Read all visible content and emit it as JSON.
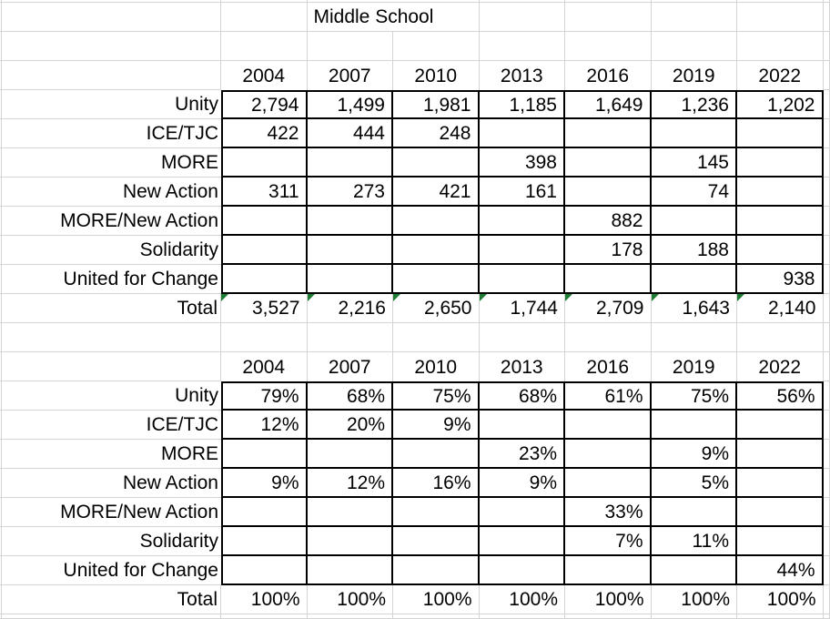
{
  "sheet_title": "Middle School",
  "years": [
    "2004",
    "2007",
    "2010",
    "2013",
    "2016",
    "2019",
    "2022"
  ],
  "counts_table": {
    "rows": [
      {
        "label": "Unity",
        "values": [
          "2,794",
          "1,499",
          "1,981",
          "1,185",
          "1,649",
          "1,236",
          "1,202"
        ]
      },
      {
        "label": "ICE/TJC",
        "values": [
          "422",
          "444",
          "248",
          "",
          "",
          "",
          ""
        ]
      },
      {
        "label": "MORE",
        "values": [
          "",
          "",
          "",
          "398",
          "",
          "145",
          ""
        ]
      },
      {
        "label": "New Action",
        "values": [
          "311",
          "273",
          "421",
          "161",
          "",
          "74",
          ""
        ]
      },
      {
        "label": "MORE/New Action",
        "values": [
          "",
          "",
          "",
          "",
          "882",
          "",
          ""
        ]
      },
      {
        "label": "Solidarity",
        "values": [
          "",
          "",
          "",
          "",
          "178",
          "188",
          ""
        ]
      },
      {
        "label": "United for Change",
        "values": [
          "",
          "",
          "",
          "",
          "",
          "",
          "938"
        ]
      }
    ],
    "total": {
      "label": "Total",
      "values": [
        "3,527",
        "2,216",
        "2,650",
        "1,744",
        "2,709",
        "1,643",
        "2,140"
      ],
      "error_indicators": true
    }
  },
  "percent_table": {
    "rows": [
      {
        "label": "Unity",
        "values": [
          "79%",
          "68%",
          "75%",
          "68%",
          "61%",
          "75%",
          "56%"
        ]
      },
      {
        "label": "ICE/TJC",
        "values": [
          "12%",
          "20%",
          "9%",
          "",
          "",
          "",
          ""
        ]
      },
      {
        "label": "MORE",
        "values": [
          "",
          "",
          "",
          "23%",
          "",
          "9%",
          ""
        ]
      },
      {
        "label": "New Action",
        "values": [
          "9%",
          "12%",
          "16%",
          "9%",
          "",
          "5%",
          ""
        ]
      },
      {
        "label": "MORE/New Action",
        "values": [
          "",
          "",
          "",
          "",
          "33%",
          "",
          ""
        ]
      },
      {
        "label": "Solidarity",
        "values": [
          "",
          "",
          "",
          "",
          "7%",
          "11%",
          ""
        ]
      },
      {
        "label": "United for Change",
        "values": [
          "",
          "",
          "",
          "",
          "",
          "",
          "44%"
        ]
      }
    ],
    "total": {
      "label": "Total",
      "values": [
        "100%",
        "100%",
        "100%",
        "100%",
        "100%",
        "100%",
        "100%"
      ],
      "error_indicators": false
    }
  },
  "colors": {
    "gridline": "#d4d4d4",
    "cell_border": "#000000",
    "error_indicator_green": "#1e7b34",
    "background": "#ffffff",
    "text": "#000000"
  }
}
